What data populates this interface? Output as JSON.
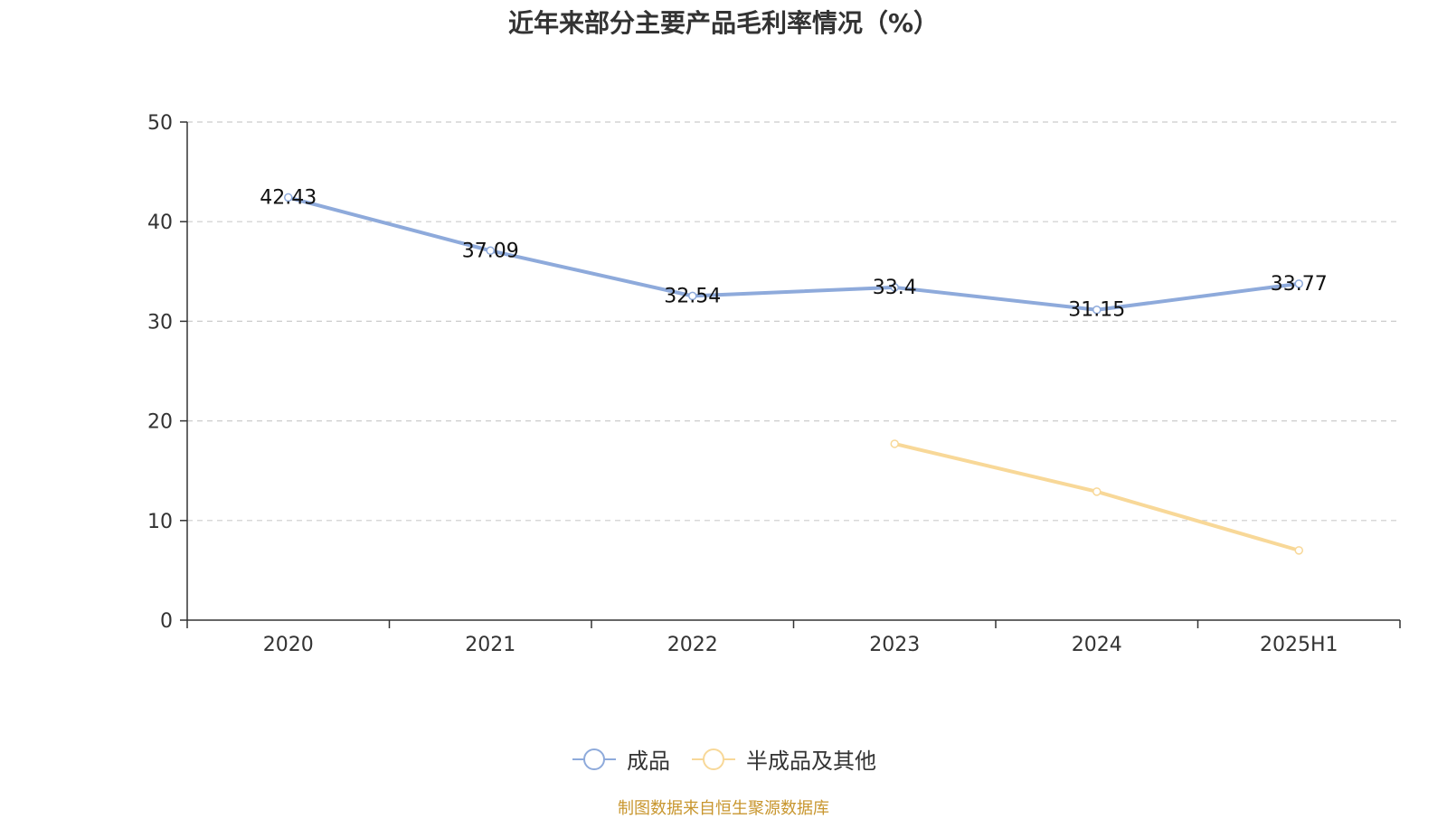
{
  "chart_data": {
    "type": "line",
    "title": "近年来部分主要产品毛利率情况（%）",
    "xlabel": "",
    "ylabel": "",
    "categories": [
      "2020",
      "2021",
      "2022",
      "2023",
      "2024",
      "2025H1"
    ],
    "ylim": [
      0,
      50
    ],
    "yticks": [
      0,
      10,
      20,
      30,
      40,
      50
    ],
    "grid": true,
    "legend_position": "bottom",
    "series": [
      {
        "name": "成品",
        "color": "#8eaadb",
        "values": [
          42.43,
          37.09,
          32.54,
          33.4,
          31.15,
          33.77
        ],
        "show_labels": true
      },
      {
        "name": "半成品及其他",
        "color": "#f8d898",
        "values": [
          null,
          null,
          null,
          17.7,
          12.9,
          7.0
        ],
        "show_labels": false
      }
    ]
  },
  "source_note": "制图数据来自恒生聚源数据库"
}
